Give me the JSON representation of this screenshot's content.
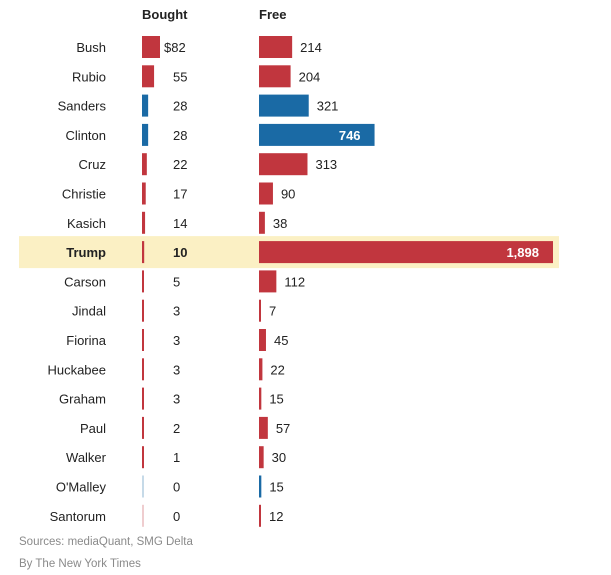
{
  "chart_data": {
    "type": "bar",
    "orientation": "horizontal",
    "columns": [
      {
        "key": "bought",
        "title": "Bought"
      },
      {
        "key": "free",
        "title": "Free"
      }
    ],
    "bought_first_prefix": "$",
    "highlight": "Trump",
    "colors": {
      "republican": "#c1363e",
      "democrat": "#1a6aa5",
      "highlight_bg": "#fbf0c4"
    },
    "rows": [
      {
        "name": "Bush",
        "party": "R",
        "bought": 82,
        "free": 214
      },
      {
        "name": "Rubio",
        "party": "R",
        "bought": 55,
        "free": 204
      },
      {
        "name": "Sanders",
        "party": "D",
        "bought": 28,
        "free": 321
      },
      {
        "name": "Clinton",
        "party": "D",
        "bought": 28,
        "free": 746
      },
      {
        "name": "Cruz",
        "party": "R",
        "bought": 22,
        "free": 313
      },
      {
        "name": "Christie",
        "party": "R",
        "bought": 17,
        "free": 90
      },
      {
        "name": "Kasich",
        "party": "R",
        "bought": 14,
        "free": 38
      },
      {
        "name": "Trump",
        "party": "R",
        "bought": 10,
        "free": 1898
      },
      {
        "name": "Carson",
        "party": "R",
        "bought": 5,
        "free": 112
      },
      {
        "name": "Jindal",
        "party": "R",
        "bought": 3,
        "free": 7
      },
      {
        "name": "Fiorina",
        "party": "R",
        "bought": 3,
        "free": 45
      },
      {
        "name": "Huckabee",
        "party": "R",
        "bought": 3,
        "free": 22
      },
      {
        "name": "Graham",
        "party": "R",
        "bought": 3,
        "free": 15
      },
      {
        "name": "Paul",
        "party": "R",
        "bought": 2,
        "free": 57
      },
      {
        "name": "Walker",
        "party": "R",
        "bought": 1,
        "free": 30
      },
      {
        "name": "O'Malley",
        "party": "D",
        "bought": 0,
        "free": 15
      },
      {
        "name": "Santorum",
        "party": "R",
        "bought": 0,
        "free": 12
      }
    ]
  },
  "sources": "Sources: mediaQuant, SMG Delta",
  "credit": "By The New York Times"
}
